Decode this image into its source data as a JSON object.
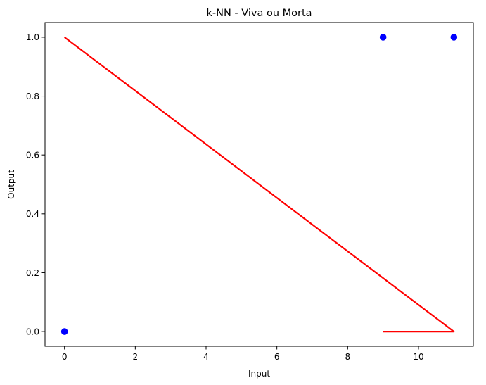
{
  "chart_data": {
    "type": "scatter",
    "title": "k-NN - Viva ou Morta",
    "xlabel": "Input",
    "ylabel": "Output",
    "xlim": [
      -0.55,
      11.55
    ],
    "ylim": [
      -0.05,
      1.05
    ],
    "xticks": [
      0,
      2,
      4,
      6,
      8,
      10
    ],
    "yticks": [
      0.0,
      0.2,
      0.4,
      0.6,
      0.8,
      1.0
    ],
    "xtick_labels": [
      "0",
      "2",
      "4",
      "6",
      "8",
      "10"
    ],
    "ytick_labels": [
      "0.0",
      "0.2",
      "0.4",
      "0.6",
      "0.8",
      "1.0"
    ],
    "grid": false,
    "series": [
      {
        "kind": "scatter",
        "color": "#0000ff",
        "points": [
          {
            "x": 0,
            "y": 0
          },
          {
            "x": 9,
            "y": 1
          },
          {
            "x": 11,
            "y": 1
          }
        ]
      },
      {
        "kind": "line",
        "color": "#ff0000",
        "points": [
          {
            "x": 9,
            "y": 0
          },
          {
            "x": 11,
            "y": 0
          },
          {
            "x": 0,
            "y": 1
          }
        ]
      }
    ]
  }
}
